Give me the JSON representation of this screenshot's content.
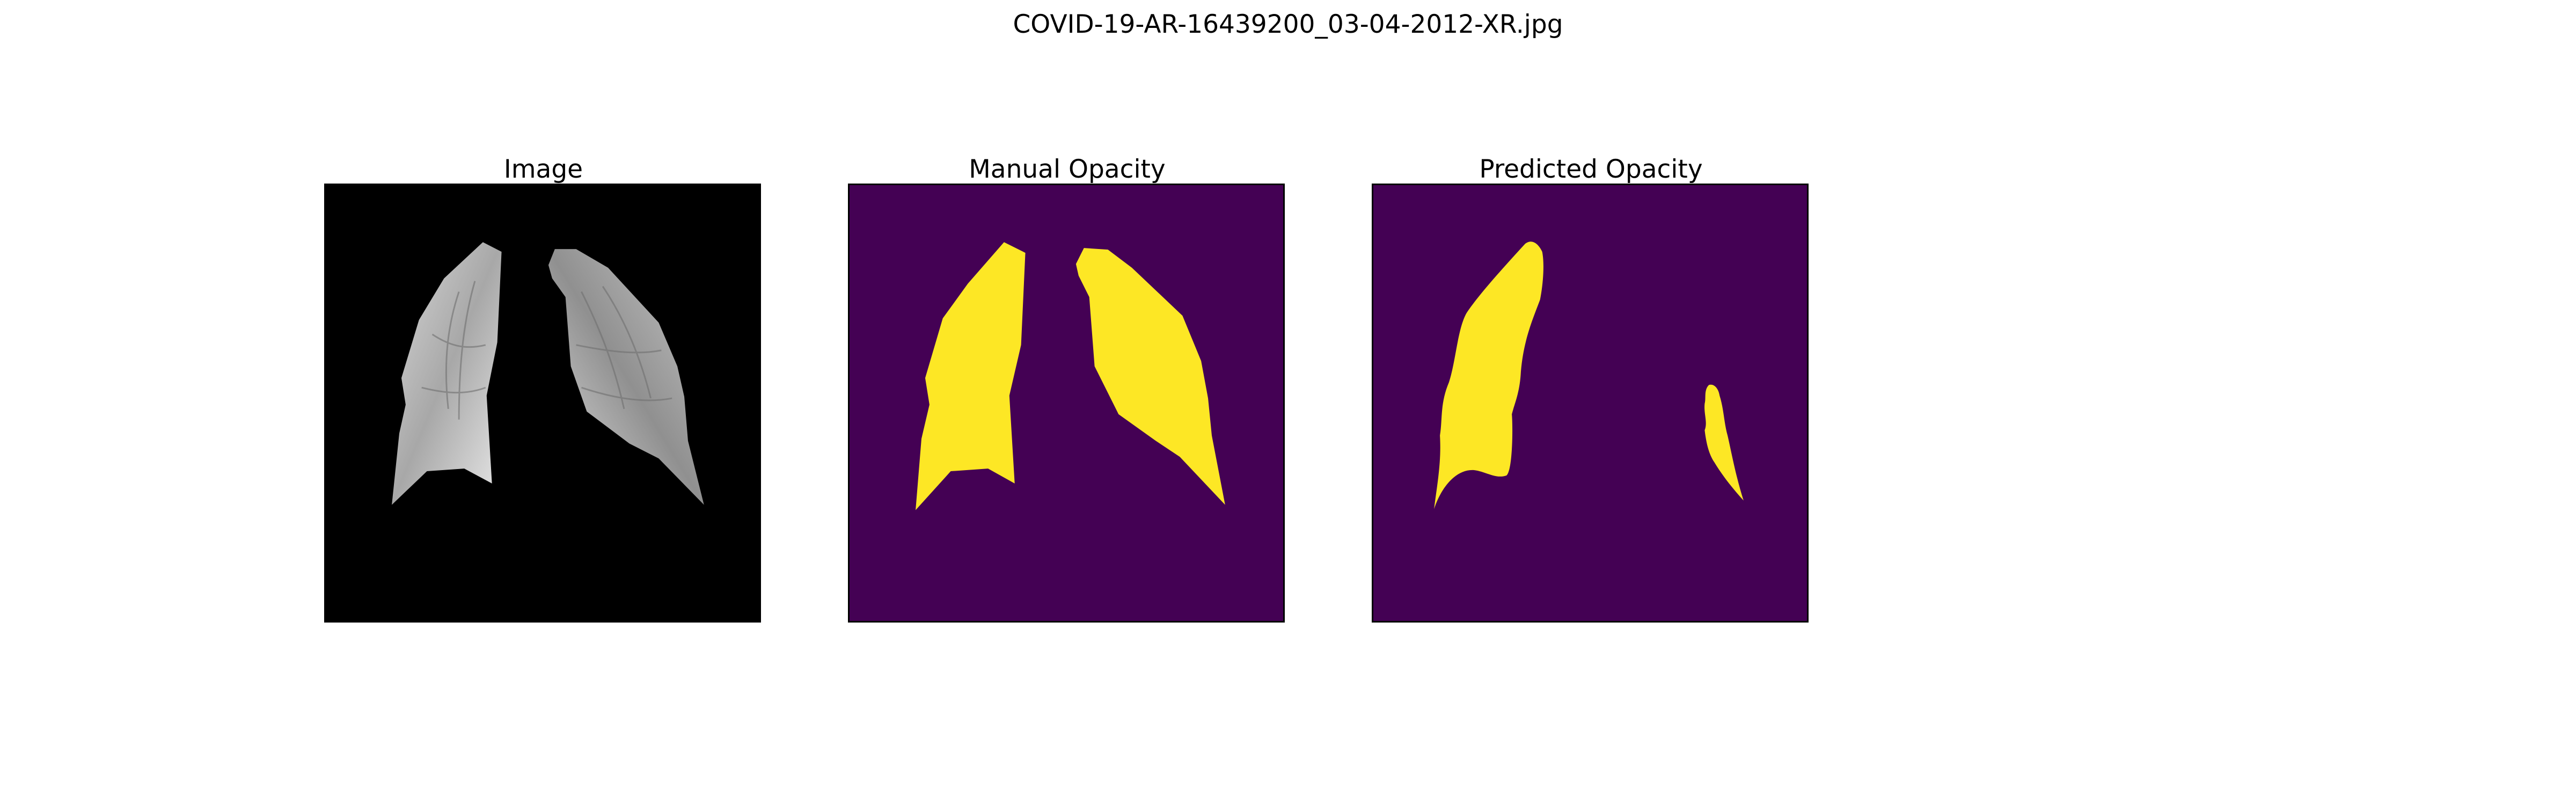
{
  "figure": {
    "title": "COVID-19-AR-16439200_03-04-2012-XR.jpg"
  },
  "panels": [
    {
      "title": "Image",
      "background": "#000000"
    },
    {
      "title": "Manual Opacity",
      "background": "#440154",
      "mask_color": "#fde725"
    },
    {
      "title": "Predicted Opacity",
      "background": "#440154",
      "mask_color": "#fde725"
    }
  ]
}
